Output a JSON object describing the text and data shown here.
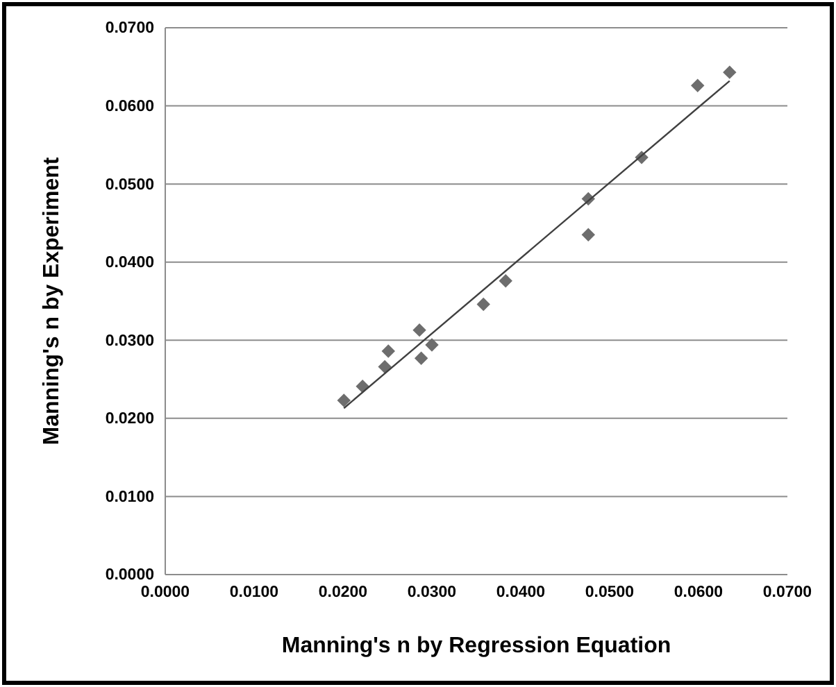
{
  "chart_data": {
    "type": "scatter",
    "xlabel": "Manning's n by Regression Equation",
    "ylabel": "Manning's n by Experiment",
    "xlim": [
      0,
      0.07
    ],
    "ylim": [
      0,
      0.07
    ],
    "xticks": [
      {
        "value": 0,
        "label": "0.0000"
      },
      {
        "value": 0.01,
        "label": "0.0100"
      },
      {
        "value": 0.02,
        "label": "0.0200"
      },
      {
        "value": 0.03,
        "label": "0.0300"
      },
      {
        "value": 0.04,
        "label": "0.0400"
      },
      {
        "value": 0.05,
        "label": "0.0500"
      },
      {
        "value": 0.06,
        "label": "0.0600"
      },
      {
        "value": 0.07,
        "label": "0.0700"
      }
    ],
    "yticks": [
      {
        "value": 0,
        "label": "0.0000"
      },
      {
        "value": 0.01,
        "label": "0.0100"
      },
      {
        "value": 0.02,
        "label": "0.0200"
      },
      {
        "value": 0.03,
        "label": "0.0300"
      },
      {
        "value": 0.04,
        "label": "0.0400"
      },
      {
        "value": 0.05,
        "label": "0.0500"
      },
      {
        "value": 0.06,
        "label": "0.0600"
      },
      {
        "value": 0.07,
        "label": "0.0700"
      }
    ],
    "grid": "y",
    "series": [
      {
        "marker": "diamond",
        "color": "#6d6d6d",
        "x": [
          0.0201,
          0.0222,
          0.0247,
          0.0251,
          0.0286,
          0.0288,
          0.03,
          0.0358,
          0.0383,
          0.0476,
          0.0476,
          0.0536,
          0.0599,
          0.0635
        ],
        "values": [
          0.0223,
          0.0241,
          0.0266,
          0.0286,
          0.0313,
          0.0277,
          0.0294,
          0.0346,
          0.0376,
          0.0481,
          0.0435,
          0.0534,
          0.0626,
          0.0643
        ]
      },
      {
        "type": "line",
        "color": "#404040",
        "x": [
          0.0201,
          0.0635
        ],
        "values": [
          0.0213,
          0.0632
        ]
      }
    ]
  }
}
